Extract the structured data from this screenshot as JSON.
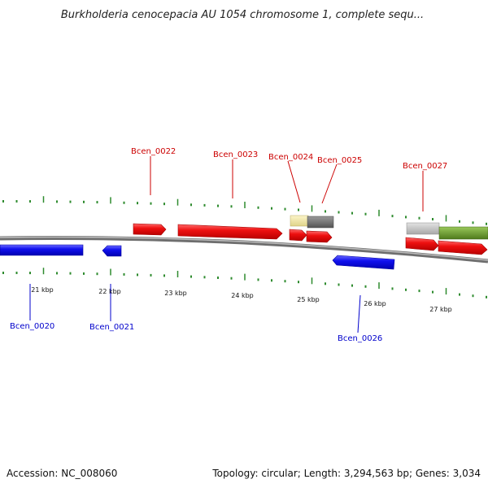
{
  "title": "Burkholderia cenocepacia AU 1054 chromosome 1, complete sequ...",
  "footer": {
    "accession": "Accession: NC_008060",
    "summary": "Topology: circular; Length: 3,294,563 bp; Genes: 3,034"
  },
  "colors": {
    "forward_gene": "#e00000",
    "reverse_gene": "#1010e0",
    "forward_label": "#cc0000",
    "reverse_label": "#0000cc",
    "backbone": "#888888",
    "tick": "#2e8b2e",
    "pale_yellow_feature": "#f0e6a0",
    "dark_gray_feature": "#707070",
    "light_gray_feature": "#c4c4c4",
    "green_feature": "#6e9a2e"
  },
  "ruler": {
    "tick_labels": [
      "21 kbp",
      "22 kbp",
      "23 kbp",
      "24 kbp",
      "25 kbp",
      "26 kbp",
      "27 kbp"
    ]
  },
  "genes": {
    "forward": [
      {
        "label": "Bcen_0022"
      },
      {
        "label": "Bcen_0023"
      },
      {
        "label": "Bcen_0024"
      },
      {
        "label": "Bcen_0025"
      },
      {
        "label": "Bcen_0027"
      }
    ],
    "reverse": [
      {
        "label": "Bcen_0020"
      },
      {
        "label": "Bcen_0021"
      },
      {
        "label": "Bcen_0026"
      }
    ]
  }
}
